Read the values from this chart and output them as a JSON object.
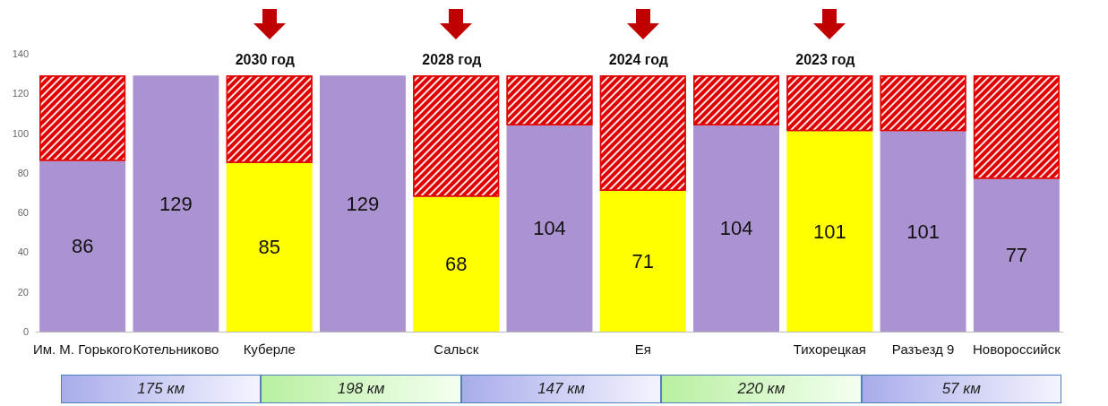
{
  "chart_data": {
    "type": "bar",
    "stacked": true,
    "grid": false,
    "categories": [
      "Им. М. Горького",
      "Котельниково",
      "Куберле",
      null,
      "Сальск",
      null,
      "Ея",
      null,
      "Тихорецкая",
      "Разъезд 9",
      "Новороссийск"
    ],
    "series": [
      {
        "colors": [
          "#ab93d2",
          "#ab93d2",
          "#ffff00",
          "#ab93d2",
          "#ffff00",
          "#ab93d2",
          "#ffff00",
          "#ab93d2",
          "#ffff00",
          "#ab93d2",
          "#ab93d2"
        ],
        "values": [
          86,
          129,
          85,
          129,
          68,
          104,
          71,
          104,
          101,
          101,
          77
        ],
        "value_labels": [
          "86",
          "129",
          "85",
          "129",
          "68",
          "104",
          "71",
          "104",
          "101",
          "101",
          "77"
        ]
      },
      {
        "color": "#e00000",
        "values": [
          43,
          null,
          44,
          null,
          61,
          25,
          58,
          25,
          28,
          28,
          52
        ]
      }
    ],
    "ylim": [
      0,
      140
    ],
    "yticks": [
      0,
      20,
      40,
      60,
      80,
      100,
      120,
      140
    ],
    "annotations": [
      "2030 год",
      "2028 год",
      "2024 год",
      "2023 год",
      "175 км",
      "198 км",
      "147 км",
      "220 км",
      "57 км"
    ]
  }
}
